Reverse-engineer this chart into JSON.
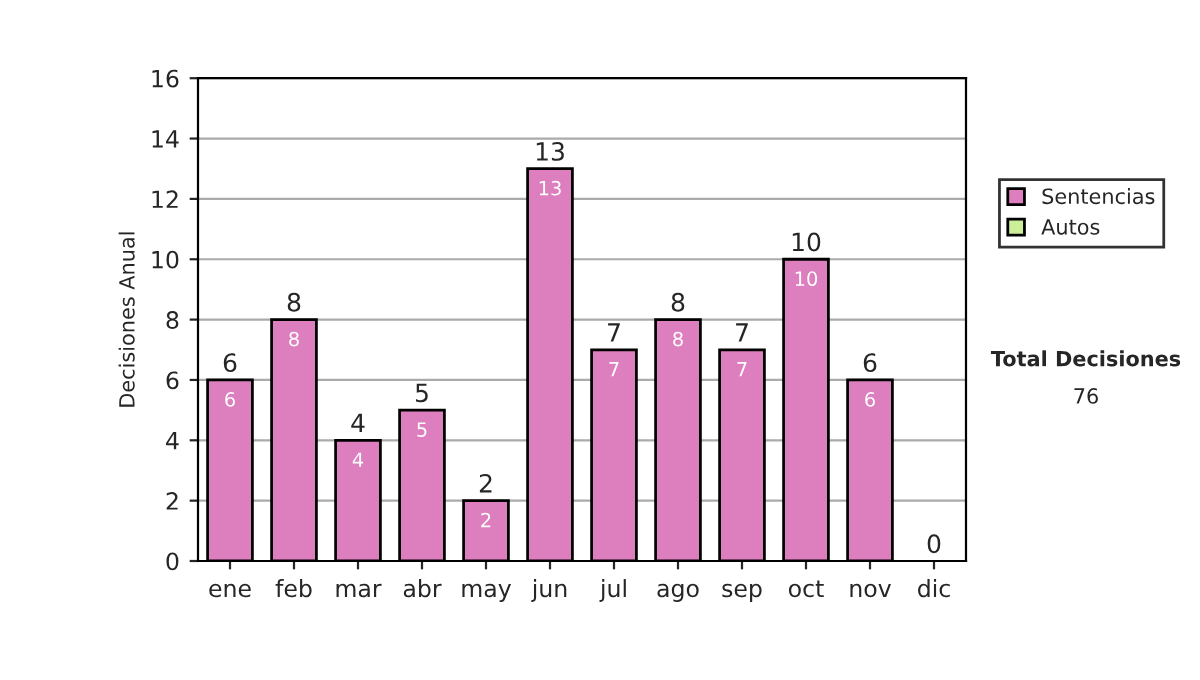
{
  "chart_data": {
    "type": "bar",
    "stacked": true,
    "ylabel": "Decisiones Anual",
    "categories": [
      "ene",
      "feb",
      "mar",
      "abr",
      "may",
      "jun",
      "jul",
      "ago",
      "sep",
      "oct",
      "nov",
      "dic"
    ],
    "series": [
      {
        "name": "Sentencias",
        "color": "#dd7fbe",
        "values": [
          6,
          8,
          4,
          5,
          2,
          13,
          7,
          8,
          7,
          10,
          6,
          0
        ],
        "value_labels": [
          "6",
          "8",
          "4",
          "5",
          "2",
          "13",
          "7",
          "8",
          "7",
          "10",
          "6",
          null
        ]
      },
      {
        "name": "Autos",
        "color": "#ccee99",
        "values": [
          0,
          0,
          0,
          0,
          0,
          0,
          0,
          0,
          0,
          0,
          0,
          0
        ]
      }
    ],
    "totals": [
      "6",
      "8",
      "4",
      "5",
      "2",
      "13",
      "7",
      "8",
      "7",
      "10",
      "6",
      "0"
    ],
    "ylim": [
      0,
      16
    ],
    "yticks": [
      0,
      2,
      4,
      6,
      8,
      10,
      12,
      14,
      16
    ],
    "grid": "y",
    "legend": "right",
    "annotations": [
      "Total Decisiones",
      "76"
    ]
  }
}
